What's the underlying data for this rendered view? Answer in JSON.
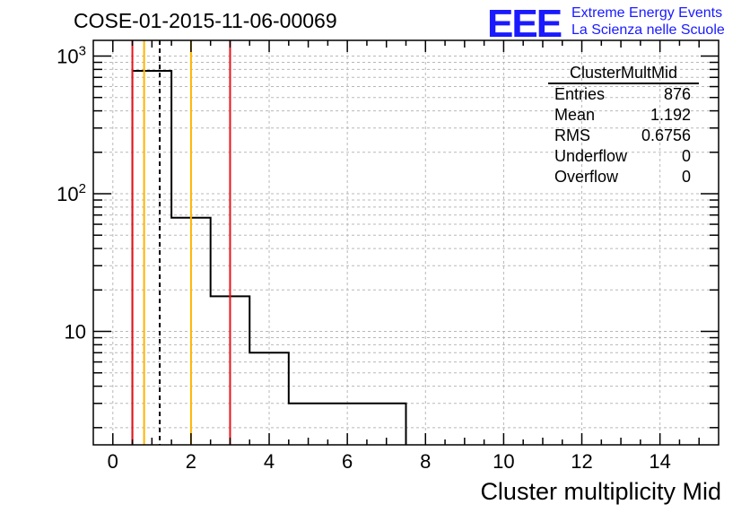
{
  "title": "COSE-01-2015-11-06-00069",
  "logo": {
    "text": "EEE",
    "line1": "Extreme Energy Events",
    "line2": "La Scienza nelle Scuole"
  },
  "stats": {
    "name": "ClusterMultMid",
    "rows": [
      {
        "label": "Entries",
        "value": "876"
      },
      {
        "label": "Mean",
        "value": "1.192"
      },
      {
        "label": "RMS",
        "value": "0.6756"
      },
      {
        "label": "Underflow",
        "value": "0"
      },
      {
        "label": "Overflow",
        "value": "0"
      }
    ]
  },
  "chart_data": {
    "type": "histogram",
    "title": "COSE-01-2015-11-06-00069",
    "xlabel": "Cluster multiplicity Mid",
    "ylabel": "",
    "yscale": "log",
    "xlim": [
      -0.5,
      15.5
    ],
    "ylim": [
      1.5,
      1300
    ],
    "grid": true,
    "xticks": [
      0,
      2,
      4,
      6,
      8,
      10,
      12,
      14
    ],
    "ytick_labels": [
      {
        "value": 10,
        "label": "10"
      },
      {
        "value": 100,
        "label": "10^2"
      },
      {
        "value": 1000,
        "label": "10^3"
      }
    ],
    "bins": [
      {
        "x0": 0.5,
        "x1": 1.5,
        "count": 780
      },
      {
        "x0": 1.5,
        "x1": 2.5,
        "count": 67
      },
      {
        "x0": 2.5,
        "x1": 3.5,
        "count": 18
      },
      {
        "x0": 3.5,
        "x1": 4.5,
        "count": 7
      },
      {
        "x0": 4.5,
        "x1": 7.5,
        "count": 3
      }
    ],
    "vlines": [
      {
        "x": 0.5,
        "color": "#e8141c",
        "style": "solid"
      },
      {
        "x": 0.8,
        "color": "#ffb400",
        "style": "solid"
      },
      {
        "x": 1.2,
        "color": "#000000",
        "style": "dashed"
      },
      {
        "x": 2.0,
        "color": "#ffb400",
        "style": "solid"
      },
      {
        "x": 3.0,
        "color": "#e8141c",
        "style": "solid"
      }
    ]
  }
}
